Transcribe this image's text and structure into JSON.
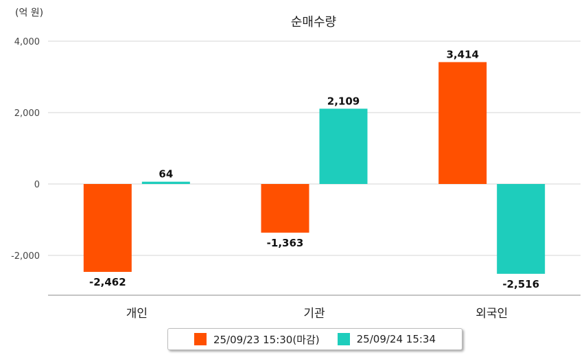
{
  "chart_data": {
    "type": "bar",
    "title": "순매수량",
    "unit_label": "(억 원)",
    "categories": [
      "개인",
      "기관",
      "외국인"
    ],
    "series": [
      {
        "name": "25/09/23 15:30(마감)",
        "color": "#ff5000",
        "values": [
          -2462,
          -1363,
          3414
        ],
        "value_labels": [
          "-2,462",
          "-1,363",
          "3,414"
        ]
      },
      {
        "name": "25/09/24 15:34",
        "color": "#1ecdbc",
        "values": [
          64,
          2109,
          -2516
        ],
        "value_labels": [
          "64",
          "2,109",
          "-2,516"
        ]
      }
    ],
    "ylim": [
      -3100,
      4000
    ],
    "yticks": [
      4000,
      2000,
      0,
      -2000
    ],
    "ytick_labels": [
      "4,000",
      "2,000",
      "0",
      "-2,000"
    ],
    "grid": true,
    "legend_position": "bottom"
  }
}
